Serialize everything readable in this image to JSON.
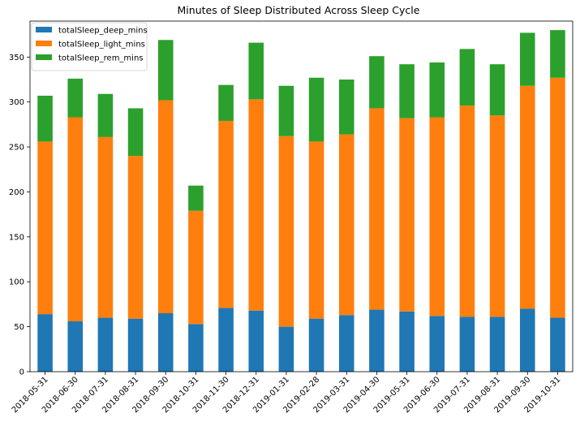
{
  "chart_data": {
    "type": "bar",
    "stacked": true,
    "title": "Minutes of Sleep Distributed Across Sleep Cycle",
    "xlabel": "",
    "ylabel": "",
    "ylim": [
      0,
      390
    ],
    "yticks": [
      0,
      50,
      100,
      150,
      200,
      250,
      300,
      350
    ],
    "grid": false,
    "legend_position": "top-left",
    "categories": [
      "2018-05-31",
      "2018-06-30",
      "2018-07-31",
      "2018-08-31",
      "2018-09-30",
      "2018-10-31",
      "2018-11-30",
      "2018-12-31",
      "2019-01-31",
      "2019-02-28",
      "2019-03-31",
      "2019-04-30",
      "2019-05-31",
      "2019-06-30",
      "2019-07-31",
      "2019-08-31",
      "2019-09-30",
      "2019-10-31"
    ],
    "series": [
      {
        "name": "totalSleep_deep_mins",
        "color": "#1f77b4",
        "values": [
          64,
          56,
          60,
          59,
          65,
          53,
          71,
          68,
          50,
          59,
          63,
          69,
          67,
          62,
          61,
          61,
          70,
          60
        ]
      },
      {
        "name": "totalSleep_light_mins",
        "color": "#ff7f0e",
        "values": [
          192,
          227,
          201,
          181,
          237,
          126,
          208,
          235,
          212,
          197,
          201,
          224,
          215,
          221,
          235,
          224,
          248,
          267
        ]
      },
      {
        "name": "totalSleep_rem_mins",
        "color": "#2ca02c",
        "values": [
          51,
          43,
          48,
          53,
          67,
          28,
          40,
          63,
          56,
          71,
          61,
          58,
          60,
          61,
          63,
          57,
          59,
          53
        ]
      }
    ]
  }
}
